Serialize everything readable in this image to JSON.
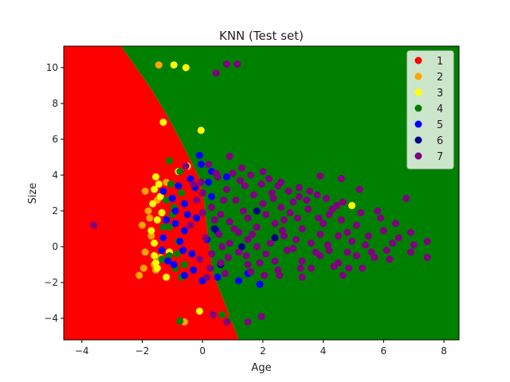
{
  "chart_data": {
    "type": "scatter",
    "title": "KNN (Test set)",
    "xlabel": "Age",
    "ylabel": "Size",
    "xlim": [
      -4.6,
      8.5
    ],
    "ylim": [
      -5.2,
      11.2
    ],
    "xticks": [
      -4,
      -2,
      0,
      2,
      4,
      6,
      8
    ],
    "yticks": [
      -4,
      -2,
      0,
      2,
      4,
      6,
      8,
      10
    ],
    "legend_position": "top-right",
    "grid": false,
    "regions": [
      {
        "class": "1",
        "color": "#ff0000",
        "polygon": [
          [
            -4.6,
            11.2
          ],
          [
            -2.7,
            11.2
          ],
          [
            -2.2,
            10.0
          ],
          [
            -1.7,
            8.8
          ],
          [
            -1.2,
            7.4
          ],
          [
            -0.75,
            6.0
          ],
          [
            -0.45,
            5.0
          ],
          [
            -0.1,
            3.8
          ],
          [
            0.05,
            2.5
          ],
          [
            0.15,
            1.0
          ],
          [
            0.35,
            -1.5
          ],
          [
            0.7,
            -3.0
          ],
          [
            1.2,
            -5.2
          ],
          [
            -4.6,
            -5.2
          ]
        ]
      },
      {
        "class": "4",
        "color": "#008000",
        "polygon": [
          [
            -2.7,
            11.2
          ],
          [
            8.5,
            11.2
          ],
          [
            8.5,
            -5.2
          ],
          [
            1.2,
            -5.2
          ],
          [
            0.7,
            -3.0
          ],
          [
            0.35,
            -1.5
          ],
          [
            0.15,
            1.0
          ],
          [
            0.05,
            2.5
          ],
          [
            -0.1,
            3.8
          ],
          [
            -0.45,
            5.0
          ],
          [
            -0.75,
            6.0
          ],
          [
            -1.2,
            7.4
          ],
          [
            -1.7,
            8.8
          ],
          [
            -2.2,
            10.0
          ]
        ]
      }
    ],
    "series": [
      {
        "name": "1",
        "color": "#ff0000",
        "points": [
          [
            -0.55,
            10.0
          ],
          [
            4.05,
            2.35
          ],
          [
            -1.3,
            -1.5
          ],
          [
            -0.4,
            -1.1
          ],
          [
            -1.0,
            -0.8
          ]
        ]
      },
      {
        "name": "2",
        "color": "#ffa500",
        "points": [
          [
            -1.45,
            10.15
          ],
          [
            -1.9,
            3.1
          ],
          [
            -1.8,
            2.0
          ],
          [
            -2.0,
            1.2
          ],
          [
            -1.7,
            0.6
          ],
          [
            -1.9,
            -0.3
          ],
          [
            -1.95,
            -1.2
          ],
          [
            -0.6,
            -4.2
          ],
          [
            -1.4,
            -0.6
          ],
          [
            -1.2,
            3.6
          ],
          [
            -2.1,
            -1.6
          ],
          [
            -1.6,
            -1.0
          ],
          [
            -1.75,
            1.6
          ],
          [
            -1.5,
            2.6
          ],
          [
            -1.55,
            -1.3
          ]
        ]
      },
      {
        "name": "3",
        "color": "#ffff00",
        "points": [
          [
            -0.95,
            10.15
          ],
          [
            -0.55,
            10.0
          ],
          [
            -1.3,
            6.95
          ],
          [
            -0.05,
            6.5
          ],
          [
            -1.55,
            3.9
          ],
          [
            -1.6,
            3.2
          ],
          [
            -1.65,
            2.4
          ],
          [
            -1.5,
            1.5
          ],
          [
            -1.7,
            0.9
          ],
          [
            -1.6,
            0.2
          ],
          [
            -1.6,
            -0.5
          ],
          [
            -1.5,
            -1.2
          ],
          [
            -1.2,
            -1.7
          ],
          [
            -0.5,
            4.5
          ],
          [
            -0.1,
            -3.6
          ],
          [
            4.95,
            2.3
          ],
          [
            -1.4,
            2.8
          ],
          [
            -1.3,
            0.5
          ],
          [
            -1.1,
            -0.3
          ],
          [
            -1.55,
            -0.9
          ],
          [
            -1.35,
            1.9
          ],
          [
            -1.45,
            3.5
          ],
          [
            -0.8,
            4.2
          ]
        ]
      },
      {
        "name": "4",
        "color": "#008000",
        "points": [
          [
            -1.1,
            4.8
          ],
          [
            -0.75,
            4.2
          ],
          [
            -0.7,
            3.0
          ],
          [
            -1.05,
            3.5
          ],
          [
            -1.2,
            2.6
          ],
          [
            -1.0,
            1.8
          ],
          [
            -1.1,
            1.1
          ],
          [
            -0.8,
            0.3
          ],
          [
            -0.85,
            -0.4
          ],
          [
            -0.6,
            -1.0
          ],
          [
            -0.7,
            -1.7
          ],
          [
            -1.1,
            -0.5
          ],
          [
            -0.75,
            -4.15
          ],
          [
            0.95,
            -4.0
          ],
          [
            -1.3,
            1.1
          ],
          [
            -1.35,
            -0.7
          ],
          [
            0.65,
            -3.8
          ],
          [
            -0.95,
            2.2
          ],
          [
            -0.9,
            -1.2
          ],
          [
            4.05,
            2.35
          ]
        ]
      },
      {
        "name": "5",
        "color": "#0000ff",
        "points": [
          [
            -0.1,
            5.1
          ],
          [
            0.3,
            4.2
          ],
          [
            -0.4,
            3.8
          ],
          [
            -1.3,
            3.1
          ],
          [
            -0.6,
            2.4
          ],
          [
            -0.9,
            2.0
          ],
          [
            -0.9,
            1.3
          ],
          [
            -0.6,
            0.9
          ],
          [
            -0.75,
            0.3
          ],
          [
            -1.3,
            0.5
          ],
          [
            -1.35,
            -0.2
          ],
          [
            -0.95,
            -1.0
          ],
          [
            -0.6,
            -1.6
          ],
          [
            0.0,
            -1.9
          ],
          [
            1.9,
            -2.1
          ],
          [
            -0.2,
            1.6
          ],
          [
            -0.35,
            -0.4
          ],
          [
            0.3,
            2.8
          ],
          [
            -0.25,
            3.3
          ],
          [
            -1.0,
            2.7
          ],
          [
            -1.15,
            -0.8
          ],
          [
            0.5,
            -1.7
          ],
          [
            1.2,
            -1.9
          ],
          [
            -0.5,
            1.8
          ],
          [
            0.15,
            0.4
          ],
          [
            -0.8,
            3.4
          ],
          [
            -0.3,
            -1.3
          ],
          [
            0.8,
            3.9
          ],
          [
            -0.05,
            4.6
          ],
          [
            -1.2,
            1.5
          ],
          [
            0.45,
            0.9
          ],
          [
            -0.65,
            -0.2
          ],
          [
            1.5,
            -1.5
          ],
          [
            0.2,
            3.6
          ]
        ]
      },
      {
        "name": "6",
        "color": "#00008b",
        "points": [
          [
            0.4,
            1.0
          ],
          [
            1.3,
            0.0
          ],
          [
            2.4,
            0.5
          ],
          [
            0.6,
            -1.0
          ],
          [
            1.8,
            2.0
          ]
        ]
      },
      {
        "name": "7",
        "color": "#800080",
        "points": [
          [
            0.8,
            10.2
          ],
          [
            1.15,
            10.2
          ],
          [
            0.45,
            9.7
          ],
          [
            0.9,
            5.05
          ],
          [
            1.6,
            4.0
          ],
          [
            2.0,
            4.2
          ],
          [
            2.6,
            3.6
          ],
          [
            3.2,
            3.3
          ],
          [
            3.9,
            3.95
          ],
          [
            4.6,
            3.8
          ],
          [
            5.2,
            3.2
          ],
          [
            6.75,
            2.7
          ],
          [
            5.8,
            2.0
          ],
          [
            6.4,
            1.3
          ],
          [
            6.9,
            0.8
          ],
          [
            7.45,
            0.3
          ],
          [
            7.45,
            -0.6
          ],
          [
            6.9,
            -0.3
          ],
          [
            6.2,
            -0.7
          ],
          [
            5.3,
            -1.2
          ],
          [
            4.65,
            -1.6
          ],
          [
            3.3,
            -1.7
          ],
          [
            2.5,
            -1.3
          ],
          [
            1.5,
            -1.0
          ],
          [
            0.75,
            -1.5
          ],
          [
            1.95,
            -3.9
          ],
          [
            1.5,
            -4.2
          ],
          [
            0.8,
            -4.2
          ],
          [
            0.35,
            -3.8
          ],
          [
            -3.6,
            1.2
          ],
          [
            -0.55,
            4.5
          ],
          [
            -0.3,
            3.5
          ],
          [
            0.0,
            3.0
          ],
          [
            0.3,
            2.2
          ],
          [
            0.6,
            1.8
          ],
          [
            0.9,
            1.4
          ],
          [
            1.2,
            0.8
          ],
          [
            1.5,
            0.4
          ],
          [
            1.8,
            0.0
          ],
          [
            2.1,
            -0.4
          ],
          [
            2.4,
            -0.8
          ],
          [
            2.7,
            1.5
          ],
          [
            3.0,
            2.5
          ],
          [
            3.3,
            1.0
          ],
          [
            3.6,
            0.2
          ],
          [
            3.9,
            -0.5
          ],
          [
            4.2,
            1.8
          ],
          [
            4.5,
            0.6
          ],
          [
            4.8,
            -0.3
          ],
          [
            5.1,
            1.2
          ],
          [
            5.4,
            0.1
          ],
          [
            5.7,
            -0.6
          ],
          [
            6.0,
            0.9
          ],
          [
            6.3,
            0.2
          ],
          [
            0.2,
            4.6
          ],
          [
            0.5,
            3.9
          ],
          [
            0.8,
            3.2
          ],
          [
            1.1,
            2.6
          ],
          [
            1.4,
            3.4
          ],
          [
            1.7,
            2.9
          ],
          [
            2.0,
            2.4
          ],
          [
            2.3,
            3.0
          ],
          [
            2.6,
            2.2
          ],
          [
            2.9,
            1.9
          ],
          [
            3.2,
            2.8
          ],
          [
            3.5,
            2.1
          ],
          [
            3.8,
            2.9
          ],
          [
            4.1,
            2.7
          ],
          [
            0.1,
            0.5
          ],
          [
            0.3,
            -0.4
          ],
          [
            0.6,
            -0.9
          ],
          [
            0.9,
            0.2
          ],
          [
            1.2,
            -0.3
          ],
          [
            1.5,
            1.6
          ],
          [
            1.8,
            1.1
          ],
          [
            2.1,
            1.8
          ],
          [
            2.4,
            1.3
          ],
          [
            2.7,
            0.6
          ],
          [
            3.0,
            -0.1
          ],
          [
            3.3,
            -0.8
          ],
          [
            3.6,
            -1.2
          ],
          [
            3.9,
            0.7
          ],
          [
            4.2,
            -0.2
          ],
          [
            4.5,
            -0.9
          ],
          [
            4.8,
            0.8
          ],
          [
            5.1,
            -0.5
          ],
          [
            0.0,
            1.9
          ],
          [
            -0.2,
            2.6
          ],
          [
            -0.4,
            1.2
          ],
          [
            -0.1,
            -0.7
          ],
          [
            0.4,
            1.5
          ],
          [
            0.7,
            2.6
          ],
          [
            1.0,
            4.1
          ],
          [
            1.3,
            4.4
          ],
          [
            1.6,
            -1.4
          ],
          [
            1.9,
            -0.9
          ],
          [
            2.2,
            3.8
          ],
          [
            2.5,
            3.4
          ],
          [
            2.8,
            -0.2
          ],
          [
            3.1,
            0.4
          ],
          [
            4.0,
            1.3
          ],
          [
            4.3,
            2.1
          ],
          [
            4.6,
            1.5
          ],
          [
            5.5,
            0.6
          ],
          [
            5.9,
            1.6
          ],
          [
            6.1,
            -0.2
          ],
          [
            0.25,
            -1.2
          ],
          [
            0.55,
            0.7
          ],
          [
            0.85,
            -0.6
          ],
          [
            1.05,
            1.0
          ],
          [
            1.35,
            2.0
          ],
          [
            1.65,
            0.7
          ],
          [
            1.95,
            3.5
          ],
          [
            2.25,
            0.2
          ],
          [
            2.55,
            -1.6
          ],
          [
            2.85,
            3.1
          ],
          [
            3.15,
            1.6
          ],
          [
            3.45,
            2.6
          ],
          [
            3.75,
            -0.3
          ],
          [
            4.35,
            -1.1
          ],
          [
            4.65,
            2.5
          ],
          [
            4.95,
            0.3
          ],
          [
            5.25,
            1.9
          ],
          [
            5.6,
            -0.3
          ],
          [
            6.5,
            0.5
          ],
          [
            7.0,
            0.1
          ],
          [
            -0.05,
            3.6
          ],
          [
            0.15,
            -1.7
          ],
          [
            0.45,
            4.1
          ],
          [
            0.65,
            0.0
          ],
          [
            1.25,
            3.7
          ],
          [
            1.45,
            -0.5
          ],
          [
            2.05,
            -1.6
          ],
          [
            2.35,
            2.7
          ],
          [
            2.65,
            0.9
          ],
          [
            3.25,
            -1.2
          ],
          [
            3.55,
            3.1
          ],
          [
            3.85,
            1.6
          ],
          [
            4.15,
            0.1
          ],
          [
            4.45,
            2.3
          ],
          [
            4.85,
            -1.2
          ]
        ]
      }
    ]
  }
}
